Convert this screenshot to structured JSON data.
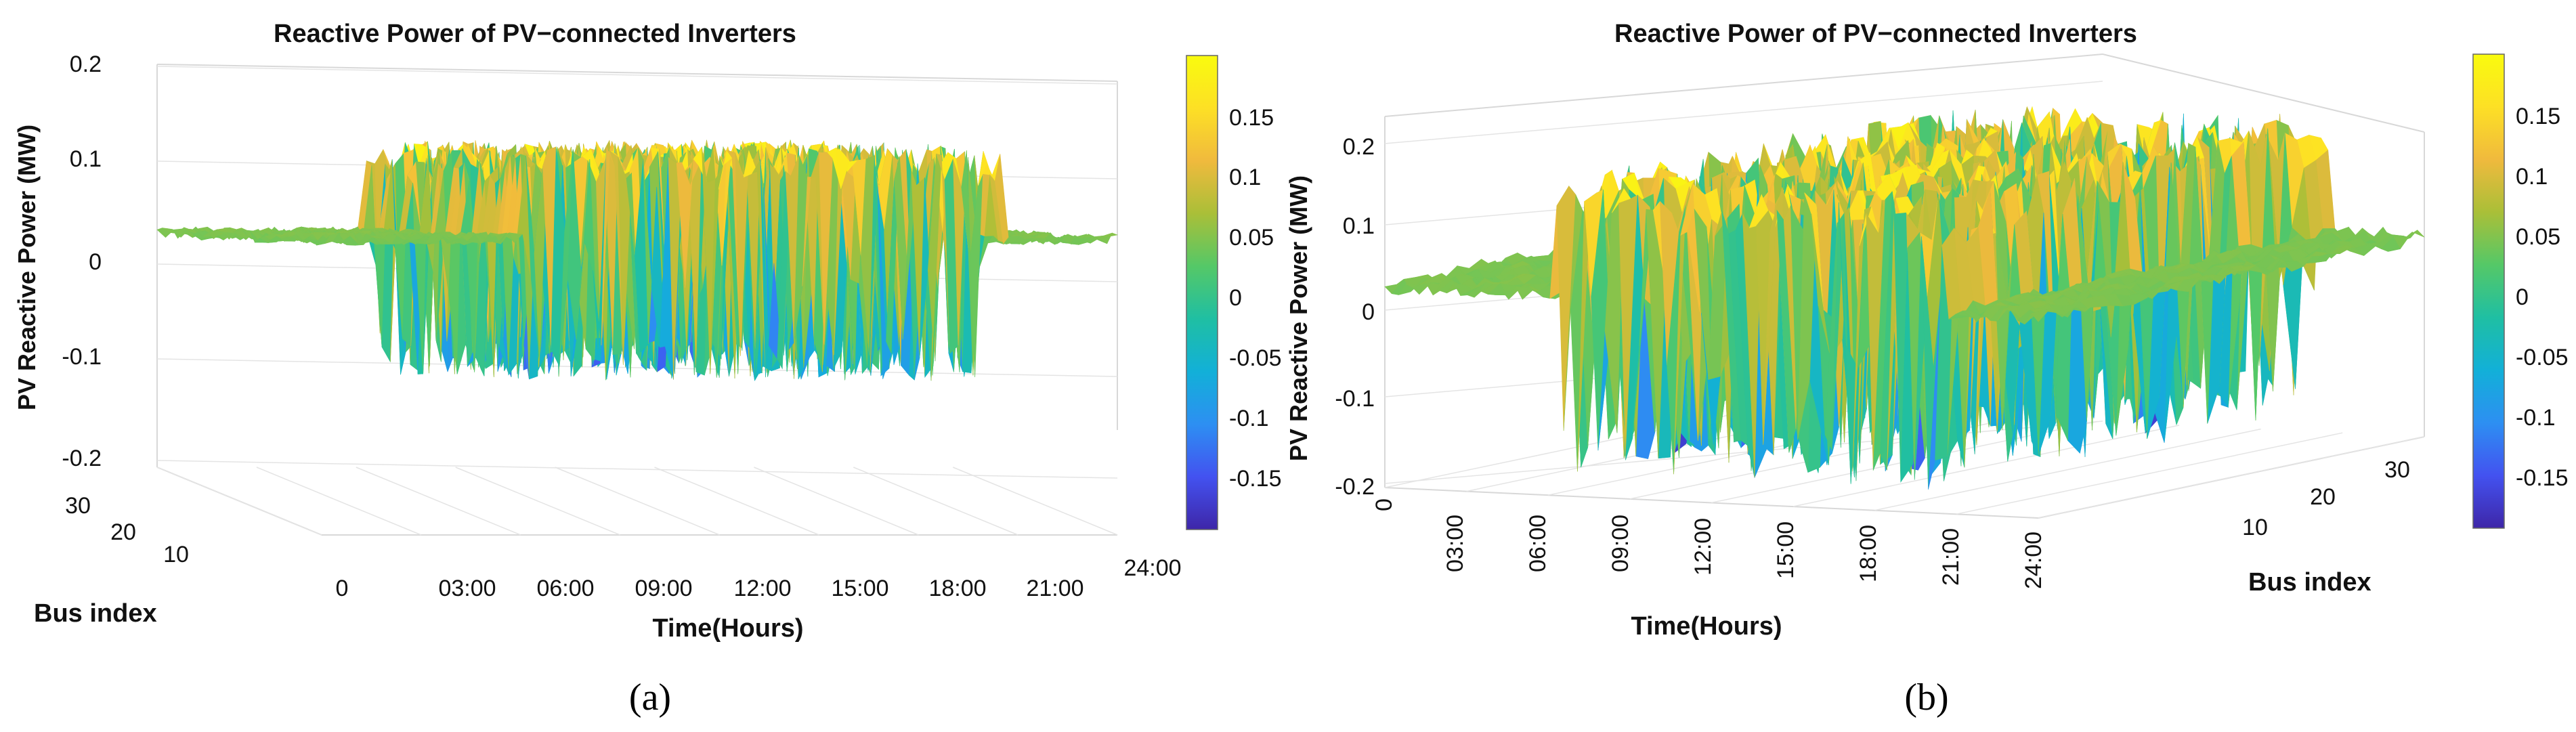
{
  "chart_data": [
    {
      "panel_label": "(a)",
      "type": "surface3d",
      "title": "Reactive Power of PV−connected Inverters",
      "xlabel": "Time(Hours)",
      "ylabel": "Bus index",
      "zlabel": "PV Reactive Power (MW)",
      "x_ticks": [
        "0",
        "03:00",
        "06:00",
        "09:00",
        "12:00",
        "15:00",
        "18:00",
        "21:00",
        "24:00"
      ],
      "y_ticks": [
        "10",
        "20",
        "30"
      ],
      "z_ticks": [
        "-0.2",
        "-0.1",
        "0",
        "0.1",
        "0.2"
      ],
      "zlim": [
        -0.2,
        0.2
      ],
      "colorbar": {
        "colormap": "parula",
        "range": [
          -0.19,
          0.19
        ],
        "ticks": [
          "-0.15",
          "-0.1",
          "-0.05",
          "0",
          "0.05",
          "0.1",
          "0.15"
        ]
      },
      "grid": true
    },
    {
      "panel_label": "(b)",
      "type": "surface3d",
      "title": "Reactive Power of PV−connected Inverters",
      "xlabel": "Time(Hours)",
      "ylabel": "Bus index",
      "zlabel": "PV Reactive Power (MW)",
      "x_ticks": [
        "0",
        "03:00",
        "06:00",
        "09:00",
        "12:00",
        "15:00",
        "18:00",
        "21:00",
        "24:00"
      ],
      "y_ticks": [
        "10",
        "20",
        "30"
      ],
      "z_ticks": [
        "-0.2",
        "-0.1",
        "0",
        "0.1",
        "0.2"
      ],
      "zlim": [
        -0.2,
        0.2
      ],
      "colorbar": {
        "colormap": "parula",
        "range": [
          -0.19,
          0.19
        ],
        "ticks": [
          "-0.15",
          "-0.1",
          "-0.05",
          "0",
          "0.05",
          "0.1",
          "0.15"
        ]
      },
      "grid": true
    }
  ],
  "parula_stops": [
    "#3e26a8",
    "#4352f0",
    "#2d8ff2",
    "#12b0d8",
    "#1fbfa3",
    "#55c867",
    "#aabf38",
    "#f0ba3d",
    "#fde025",
    "#f9fb0e"
  ]
}
